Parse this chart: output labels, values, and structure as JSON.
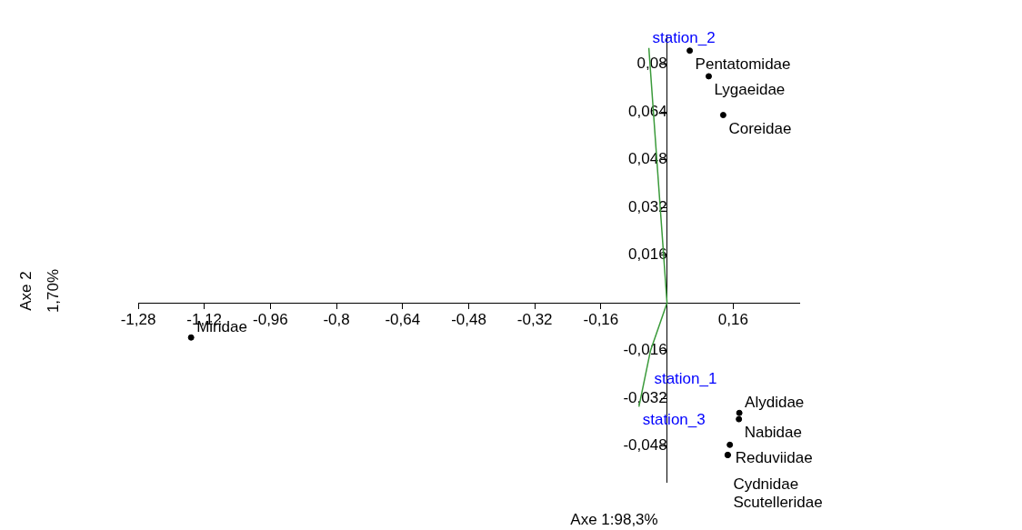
{
  "chart_data": {
    "type": "scatter",
    "xlabel": "Axe 1:98,3%",
    "ylabel": "Axe 2\n1,70%",
    "xlim": [
      -1.28,
      0.32
    ],
    "ylim": [
      -0.06,
      0.09
    ],
    "xticks": [
      {
        "value": -1.28,
        "label": "-1,28"
      },
      {
        "value": -1.12,
        "label": "-1,12"
      },
      {
        "value": -0.96,
        "label": "-0,96"
      },
      {
        "value": -0.8,
        "label": "-0,8"
      },
      {
        "value": -0.64,
        "label": "-0,64"
      },
      {
        "value": -0.48,
        "label": "-0,48"
      },
      {
        "value": -0.32,
        "label": "-0,32"
      },
      {
        "value": -0.16,
        "label": "-0,16"
      },
      {
        "value": 0,
        "label": null
      },
      {
        "value": 0.16,
        "label": "0,16"
      }
    ],
    "yticks": [
      {
        "value": -0.048,
        "label": "-0,048"
      },
      {
        "value": -0.032,
        "label": "-0,032"
      },
      {
        "value": -0.016,
        "label": "-0,016"
      },
      {
        "value": 0.016,
        "label": "0,016"
      },
      {
        "value": 0.032,
        "label": "0,032"
      },
      {
        "value": 0.048,
        "label": "0,048"
      },
      {
        "value": 0.064,
        "label": "0,064"
      },
      {
        "value": 0.08,
        "label": "0,08"
      }
    ],
    "grid": false,
    "legend": false,
    "series": [
      {
        "color": "#000000",
        "marker": "circle",
        "x": [
          0.055,
          0.101,
          0.136,
          -1.152,
          0.175,
          0.174,
          0.152,
          0.147,
          0.147
        ],
        "values": [
          0.0846,
          0.076,
          0.063,
          -0.0116,
          -0.0369,
          -0.039,
          -0.0476,
          -0.051,
          -0.051
        ],
        "value_labels": [
          "Pentatomidae",
          "Lygaeidae",
          "Coreidae",
          "Miridae",
          "Alydidae",
          "Nabidae",
          "Reduviidae",
          "Cydnidae",
          "Scutelleridae"
        ]
      },
      {
        "type": "line",
        "marker": "none",
        "color": "#3a9a3a",
        "x": [
          -0.044,
          0,
          -0.04,
          -0.068
        ],
        "values": [
          0.0855,
          0,
          -0.016,
          -0.0348
        ]
      }
    ],
    "annotations": [
      {
        "text": "station_2",
        "x": -0.044,
        "y": 0.0855
      },
      {
        "text": "station_1",
        "x": -0.04,
        "y": -0.016
      },
      {
        "text": "station_3",
        "x": -0.068,
        "y": -0.0348
      }
    ]
  }
}
